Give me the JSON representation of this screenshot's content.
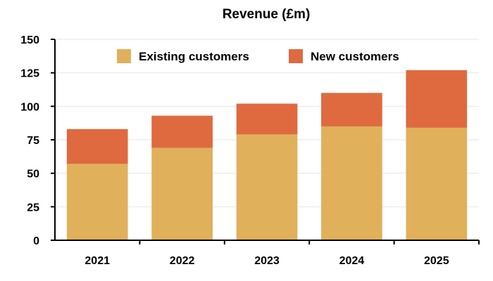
{
  "chart_data": {
    "type": "bar",
    "stacked": true,
    "title": "Revenue (£m)",
    "xlabel": "",
    "ylabel": "",
    "categories": [
      "2021",
      "2022",
      "2023",
      "2024",
      "2025"
    ],
    "series": [
      {
        "name": "Existing customers",
        "color": "#E1B05B",
        "values": [
          57,
          69,
          79,
          85,
          84
        ]
      },
      {
        "name": "New customers",
        "color": "#DF6A3F",
        "values": [
          26,
          24,
          23,
          25,
          43
        ]
      }
    ],
    "ylim": [
      0,
      150
    ],
    "yticks": [
      0,
      25,
      50,
      75,
      100,
      125,
      150
    ],
    "grid": true,
    "legend": "top"
  }
}
